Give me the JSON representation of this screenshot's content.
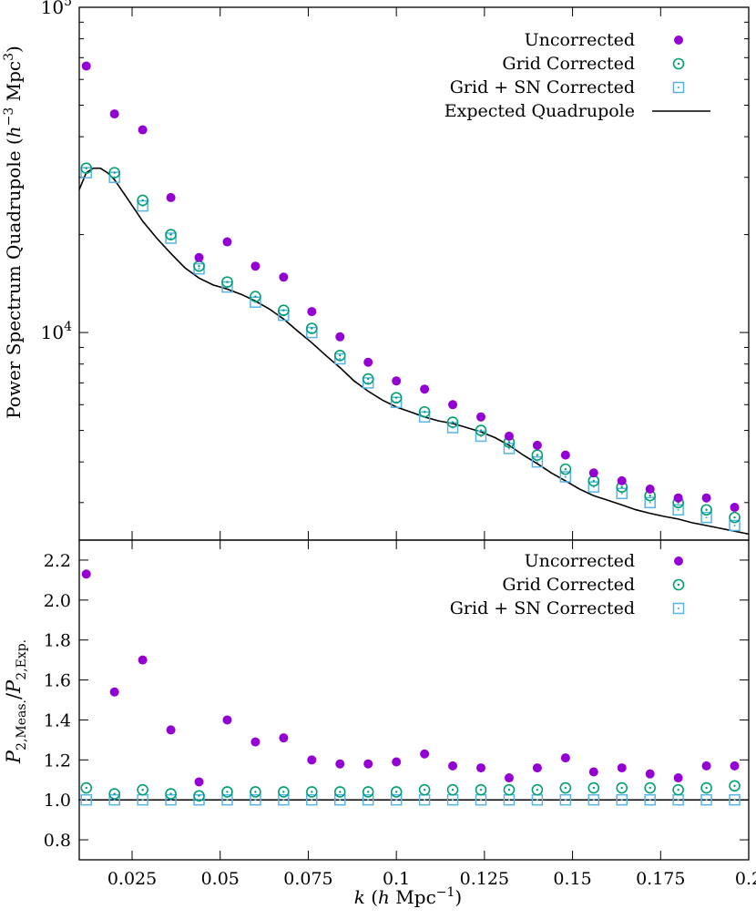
{
  "chart_data": [
    {
      "type": "scatter",
      "yscale": "log",
      "xlim": [
        0.01,
        0.2
      ],
      "ylim": [
        2300,
        100000
      ],
      "ylabel": "Power Spectrum Quadrupole (h^-3 Mpc^3)",
      "y_tick_labels": [
        {
          "base": "10",
          "exp": "4"
        },
        {
          "base": "10",
          "exp": "5"
        }
      ],
      "legend_position": "top-right",
      "x": [
        0.012,
        0.02,
        0.028,
        0.036,
        0.044,
        0.052,
        0.06,
        0.068,
        0.076,
        0.084,
        0.092,
        0.1,
        0.108,
        0.116,
        0.124,
        0.132,
        0.14,
        0.148,
        0.156,
        0.164,
        0.172,
        0.18,
        0.188,
        0.196
      ],
      "series": [
        {
          "name": "Uncorrected",
          "marker": "filled-circle",
          "color": "#9400d3",
          "values": [
            66000,
            47000,
            42000,
            26000,
            17000,
            19000,
            16000,
            14800,
            11600,
            9700,
            8100,
            7100,
            6700,
            6000,
            5500,
            4800,
            4500,
            4200,
            3700,
            3500,
            3300,
            3100,
            3100,
            2900
          ]
        },
        {
          "name": "Grid Corrected",
          "marker": "circle-dot",
          "color": "#009e73",
          "values": [
            32000,
            31000,
            25500,
            20000,
            16000,
            14300,
            12900,
            11700,
            10300,
            8500,
            7200,
            6300,
            5700,
            5300,
            5000,
            4600,
            4200,
            3800,
            3500,
            3350,
            3150,
            3000,
            2850,
            2700
          ]
        },
        {
          "name": "Grid + SN Corrected",
          "marker": "square-dot",
          "color": "#56b4e9",
          "values": [
            31000,
            30000,
            24500,
            19500,
            15700,
            13800,
            12400,
            11300,
            10000,
            8300,
            7000,
            6100,
            5500,
            5100,
            4800,
            4400,
            4000,
            3600,
            3350,
            3200,
            3000,
            2850,
            2700,
            2550
          ]
        },
        {
          "name": "Expected Quadrupole",
          "type": "line",
          "color": "#000000",
          "x": [
            0.01,
            0.012,
            0.014,
            0.016,
            0.018,
            0.02,
            0.024,
            0.028,
            0.032,
            0.036,
            0.04,
            0.044,
            0.048,
            0.052,
            0.056,
            0.06,
            0.064,
            0.068,
            0.072,
            0.076,
            0.08,
            0.084,
            0.088,
            0.092,
            0.096,
            0.1,
            0.104,
            0.108,
            0.112,
            0.116,
            0.12,
            0.124,
            0.128,
            0.132,
            0.136,
            0.14,
            0.144,
            0.148,
            0.152,
            0.156,
            0.16,
            0.164,
            0.168,
            0.172,
            0.176,
            0.18,
            0.184,
            0.188,
            0.192,
            0.196,
            0.2
          ],
          "values": [
            27500,
            31000,
            32000,
            32000,
            31000,
            29500,
            25500,
            22000,
            19500,
            17500,
            15800,
            14700,
            14000,
            13600,
            13100,
            12500,
            11800,
            11000,
            10100,
            9300,
            8500,
            7800,
            7100,
            6600,
            6200,
            5900,
            5700,
            5500,
            5350,
            5250,
            5100,
            4950,
            4750,
            4500,
            4200,
            3950,
            3700,
            3500,
            3300,
            3150,
            3050,
            2950,
            2850,
            2780,
            2720,
            2670,
            2600,
            2550,
            2500,
            2450,
            2400
          ]
        }
      ]
    },
    {
      "type": "scatter",
      "xlim": [
        0.01,
        0.2
      ],
      "ylim": [
        0.7,
        2.3
      ],
      "xlabel": "k (h Mpc^-1)",
      "ylabel": "P2,Meas./P2,Exp.",
      "x_tick_labels": [
        "0.025",
        "0.05",
        "0.075",
        "0.1",
        "0.125",
        "0.15",
        "0.175",
        "0.2"
      ],
      "y_tick_labels": [
        "0.8",
        "1.0",
        "1.2",
        "1.4",
        "1.6",
        "1.8",
        "2.0",
        "2.2"
      ],
      "legend_position": "top-right",
      "reference_line": 1.0,
      "x": [
        0.012,
        0.02,
        0.028,
        0.036,
        0.044,
        0.052,
        0.06,
        0.068,
        0.076,
        0.084,
        0.092,
        0.1,
        0.108,
        0.116,
        0.124,
        0.132,
        0.14,
        0.148,
        0.156,
        0.164,
        0.172,
        0.18,
        0.188,
        0.196
      ],
      "series": [
        {
          "name": "Uncorrected",
          "marker": "filled-circle",
          "color": "#9400d3",
          "values": [
            2.13,
            1.54,
            1.7,
            1.35,
            1.09,
            1.4,
            1.29,
            1.31,
            1.2,
            1.18,
            1.18,
            1.19,
            1.23,
            1.17,
            1.16,
            1.11,
            1.16,
            1.21,
            1.14,
            1.16,
            1.13,
            1.11,
            1.17,
            1.17
          ]
        },
        {
          "name": "Grid Corrected",
          "marker": "circle-dot",
          "color": "#009e73",
          "values": [
            1.06,
            1.03,
            1.05,
            1.03,
            1.02,
            1.04,
            1.04,
            1.04,
            1.04,
            1.04,
            1.04,
            1.04,
            1.05,
            1.05,
            1.05,
            1.05,
            1.05,
            1.06,
            1.06,
            1.06,
            1.06,
            1.05,
            1.06,
            1.07
          ]
        },
        {
          "name": "Grid + SN Corrected",
          "marker": "square-dot",
          "color": "#56b4e9",
          "values": [
            1.0,
            1.0,
            1.0,
            1.0,
            1.0,
            1.0,
            1.0,
            1.0,
            1.0,
            1.0,
            1.0,
            1.0,
            1.0,
            1.0,
            1.0,
            1.0,
            1.0,
            1.0,
            1.0,
            1.0,
            1.0,
            1.0,
            1.0,
            1.0
          ]
        }
      ]
    }
  ],
  "xlabel_parts": {
    "k": "k",
    "open": " (",
    "h": "h",
    "unit": " Mpc",
    "exp": "−1",
    "close": ")"
  },
  "top_ylabel_parts": {
    "main": "Power Spectrum Quadrupole (",
    "h": "h",
    "exp1": "−3",
    "mpc": " Mpc",
    "exp2": "3",
    "close": ")"
  },
  "bottom_ylabel_parts": {
    "p1": "P",
    "sub1": "2,Meas.",
    "slash": "/",
    "p2": "P",
    "sub2": "2,Exp."
  }
}
